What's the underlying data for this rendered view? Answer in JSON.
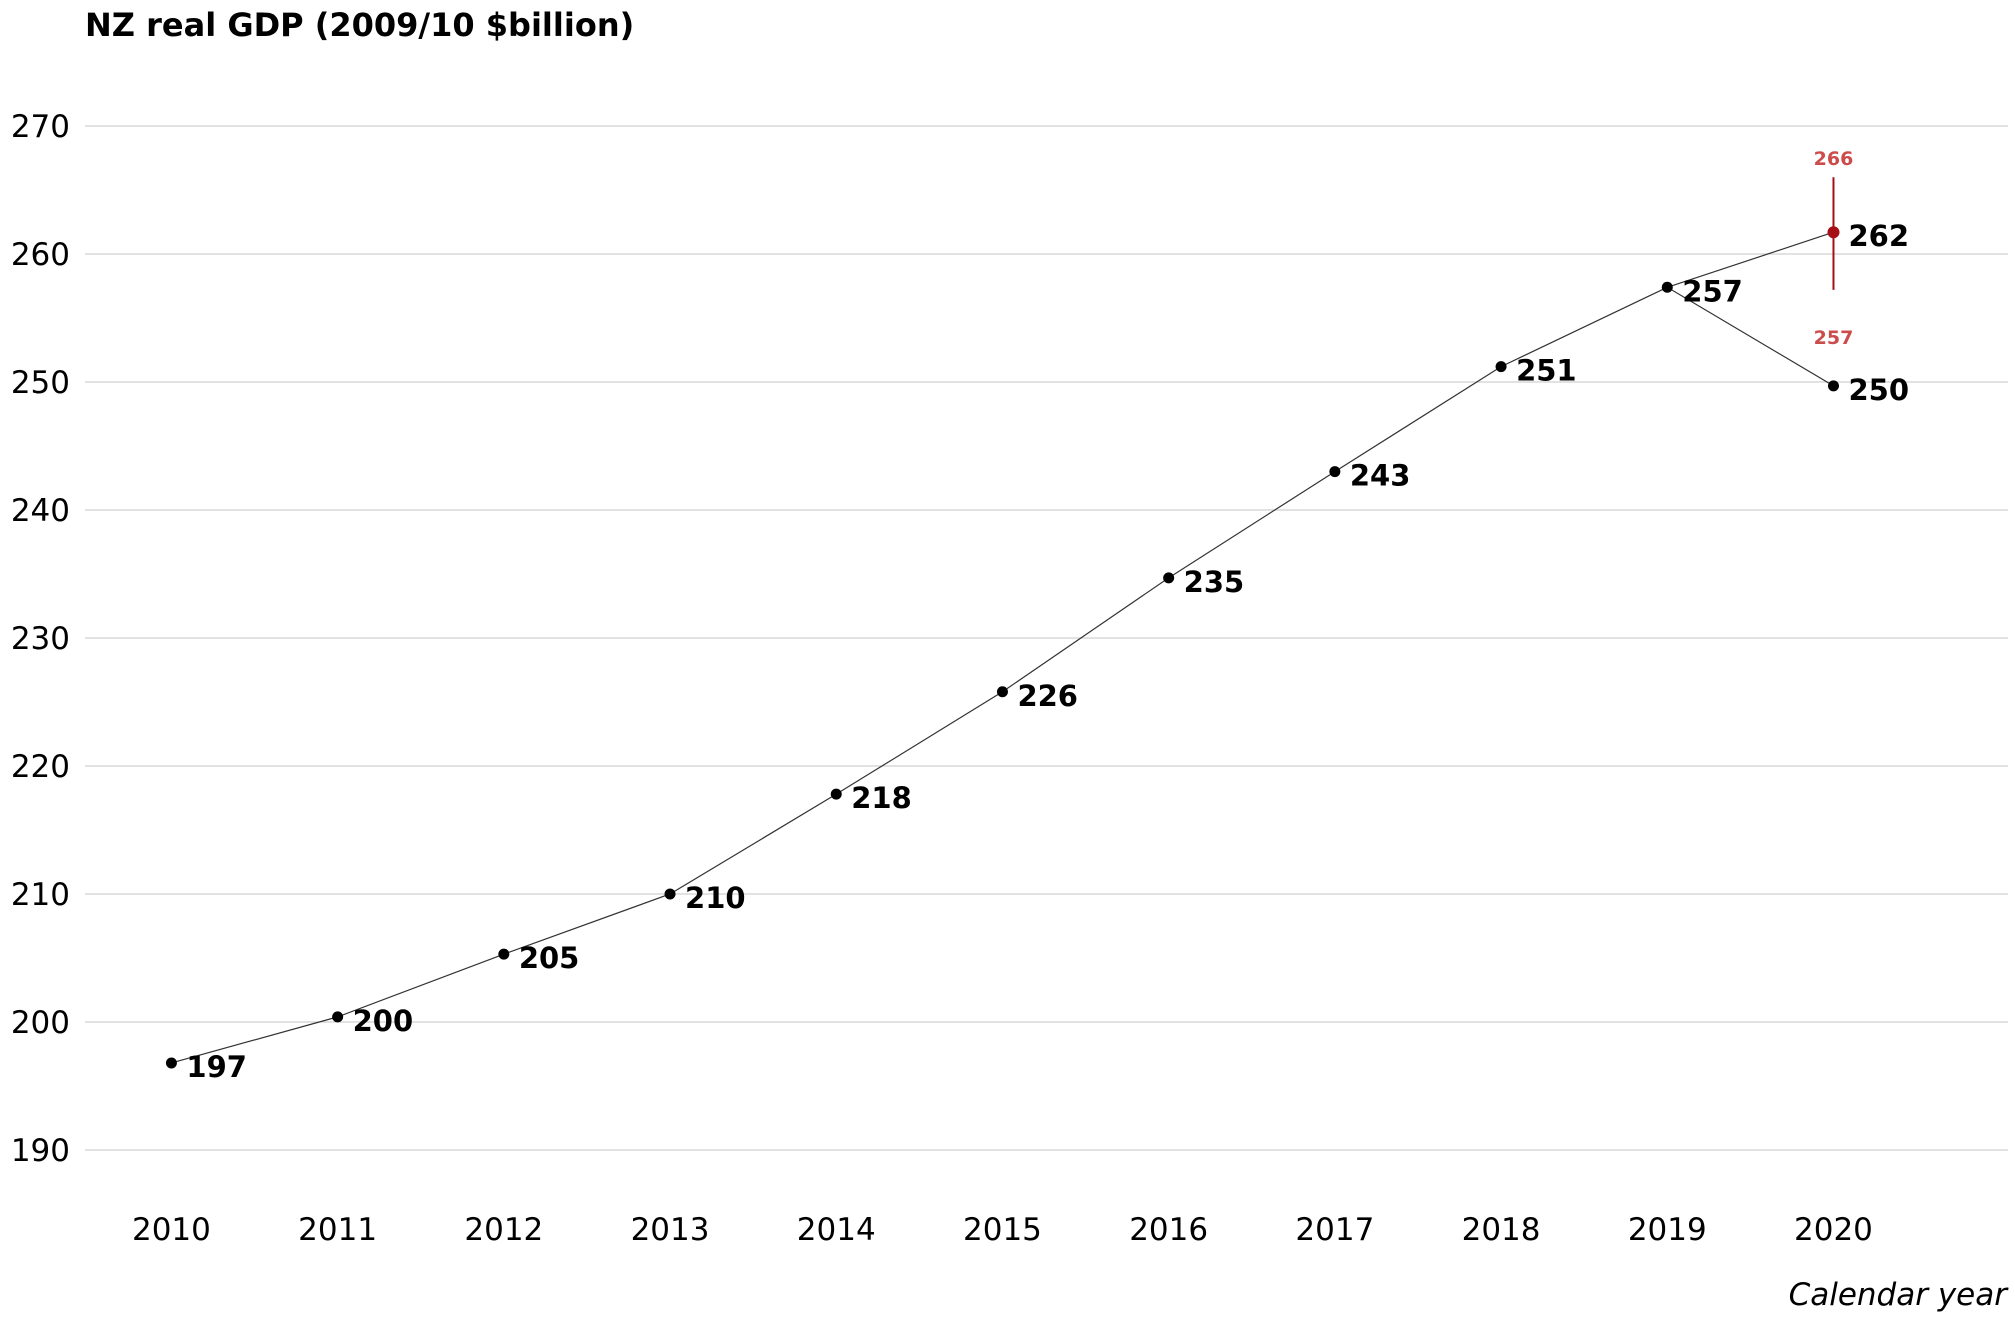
{
  "chart_data": {
    "type": "line",
    "title": "NZ real GDP (2009/10 $billion)",
    "xlabel": "Calendar year",
    "ylabel": "",
    "ylim": [
      190,
      270
    ],
    "yticks": [
      190,
      200,
      210,
      220,
      230,
      240,
      250,
      260,
      270
    ],
    "xlim": [
      2009.48,
      2021.05
    ],
    "xticks": [
      2010,
      2011,
      2012,
      2013,
      2014,
      2015,
      2016,
      2017,
      2018,
      2019,
      2020
    ],
    "grid": "horizontal",
    "series": [
      {
        "color": "#000000",
        "points": [
          {
            "x": 2010,
            "y": 196.8,
            "label": "197"
          },
          {
            "x": 2011,
            "y": 200.4,
            "label": "200"
          },
          {
            "x": 2012,
            "y": 205.3,
            "label": "205"
          },
          {
            "x": 2013,
            "y": 210.0,
            "label": "210"
          },
          {
            "x": 2014,
            "y": 217.8,
            "label": "218"
          },
          {
            "x": 2015,
            "y": 225.8,
            "label": "226"
          },
          {
            "x": 2016,
            "y": 234.7,
            "label": "235"
          },
          {
            "x": 2017,
            "y": 243.0,
            "label": "243"
          },
          {
            "x": 2018,
            "y": 251.2,
            "label": "251"
          },
          {
            "x": 2019,
            "y": 257.4,
            "label": "257"
          },
          {
            "x": 2020,
            "y": 249.7,
            "label": "250"
          }
        ]
      },
      {
        "color": "#a50f15",
        "points": [
          {
            "x": 2019,
            "y": 257.4,
            "label": ""
          },
          {
            "x": 2020,
            "y": 261.7,
            "label": "262"
          }
        ],
        "range": {
          "x": 2020,
          "low": 257.2,
          "high": 266.0,
          "low_label": "257",
          "high_label": "266",
          "color": "#cc4c4c"
        }
      }
    ]
  }
}
